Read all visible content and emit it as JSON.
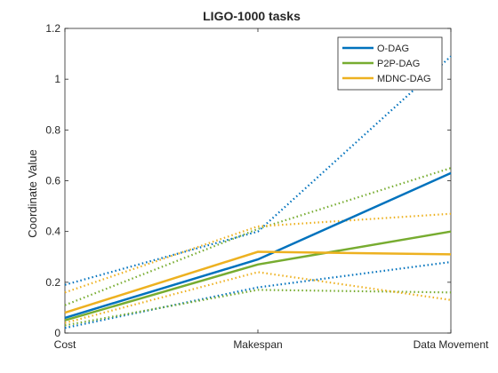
{
  "chart_data": {
    "type": "line",
    "title": "LIGO-1000 tasks",
    "xlabel": "",
    "ylabel": "Coordinate Value",
    "categories": [
      "Cost",
      "Makespan",
      "Data Movement"
    ],
    "ylim": [
      0,
      1.2
    ],
    "yticks": [
      "0",
      "0.2",
      "0.4",
      "0.6",
      "0.8",
      "1",
      "1.2"
    ],
    "grid": false,
    "legend_position": "top-right",
    "series": [
      {
        "name": "O-DAG",
        "style": "solid",
        "color": "#0072BD",
        "values": [
          0.06,
          0.29,
          0.63
        ]
      },
      {
        "name": "P2P-DAG",
        "style": "solid",
        "color": "#77AC30",
        "values": [
          0.05,
          0.27,
          0.4
        ]
      },
      {
        "name": "MDNC-DAG",
        "style": "solid",
        "color": "#EDB120",
        "values": [
          0.08,
          0.32,
          0.31
        ]
      },
      {
        "style": "dotted",
        "color": "#0072BD",
        "values": [
          0.19,
          0.4,
          1.09
        ]
      },
      {
        "style": "dotted",
        "color": "#0072BD",
        "values": [
          0.02,
          0.18,
          0.28
        ]
      },
      {
        "style": "dotted",
        "color": "#77AC30",
        "values": [
          0.11,
          0.41,
          0.65
        ]
      },
      {
        "style": "dotted",
        "color": "#77AC30",
        "values": [
          0.03,
          0.17,
          0.16
        ]
      },
      {
        "style": "dotted",
        "color": "#EDB120",
        "values": [
          0.16,
          0.42,
          0.47
        ]
      },
      {
        "style": "dotted",
        "color": "#EDB120",
        "values": [
          0.04,
          0.24,
          0.13
        ]
      }
    ]
  }
}
